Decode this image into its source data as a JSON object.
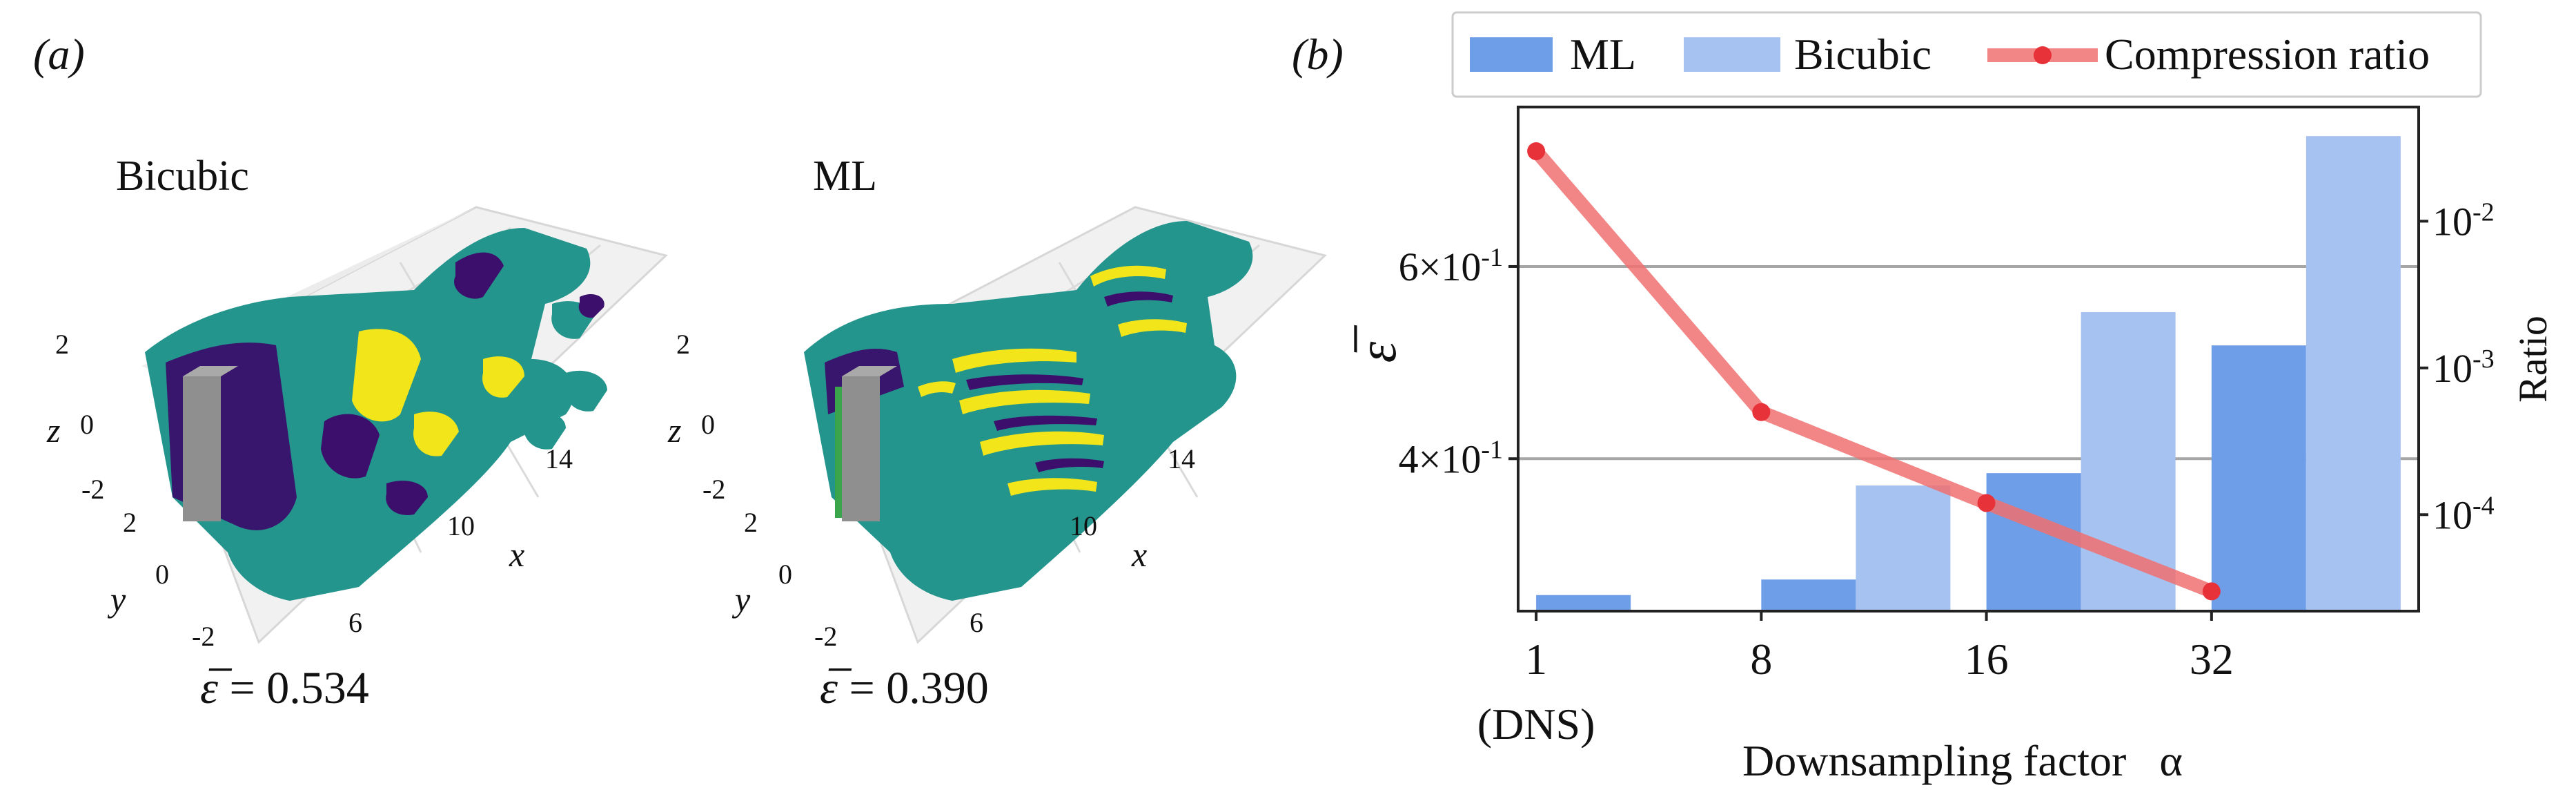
{
  "panel_a": {
    "label": "(a)",
    "plots": [
      {
        "title": "Bicubic",
        "epsilon_symbol": "ε̅",
        "epsilon_text": " = 0.534",
        "z_label": "z",
        "z_ticks": [
          "2",
          "0",
          "-2"
        ],
        "y_label": "y",
        "y_ticks": [
          "2",
          "0",
          "-2"
        ],
        "x_label": "x",
        "x_ticks": [
          "6",
          "10",
          "14"
        ]
      },
      {
        "title": "ML",
        "epsilon_symbol": "ε̅",
        "epsilon_text": " = 0.390",
        "z_label": "z",
        "z_ticks": [
          "2",
          "0",
          "-2"
        ],
        "y_label": "y",
        "y_ticks": [
          "2",
          "0",
          "-2"
        ],
        "x_label": "x",
        "x_ticks": [
          "6",
          "10",
          "14"
        ]
      }
    ],
    "colors": {
      "teal": "#23958c",
      "dark_teal": "#1b7a73",
      "purple": "#3b0f6b",
      "yellow": "#f2e51a",
      "gray_block": "#8f8f8f",
      "grid": "#d9d9d9"
    }
  },
  "panel_b": {
    "label": "(b)"
  },
  "chart_data": {
    "type": "bar",
    "categories": [
      "1",
      "8",
      "16",
      "32"
    ],
    "category_sublabels": [
      "(DNS)",
      "",
      "",
      ""
    ],
    "xlabel": "Downsampling factor   α",
    "ylabel": "ε̅",
    "y2label": "Ratio",
    "yscale": "log",
    "ylim": [
      0.29,
      0.84
    ],
    "yticks": [
      0.4,
      0.6
    ],
    "ytick_labels": [
      "4×10",
      "6×10"
    ],
    "ytick_exponent": "-1",
    "grid": "horizontal at major y ticks",
    "series": [
      {
        "name": "ML",
        "type": "bar",
        "color": "#6f9ee8",
        "values": [
          0.3,
          0.31,
          0.388,
          0.508
        ]
      },
      {
        "name": "Bicubic",
        "type": "bar",
        "color": "#a6c2f0",
        "values": [
          null,
          0.378,
          0.545,
          0.79
        ]
      },
      {
        "name": "Compression ratio",
        "type": "line",
        "axis": "right",
        "color": "#f07070",
        "marker_color": "#e8323a",
        "values": [
          0.03,
          0.0005,
          0.00012,
          3e-05
        ]
      }
    ],
    "y2scale": "log",
    "y2lim": [
      2.2e-05,
      0.06
    ],
    "y2ticks": [
      0.0001,
      0.001,
      0.01
    ],
    "y2tick_labels": [
      "10",
      "10",
      "10"
    ],
    "y2tick_exponents": [
      "-4",
      "-3",
      "-2"
    ],
    "legend": {
      "placement": "top",
      "entries": [
        "ML",
        "Bicubic",
        "Compression ratio"
      ]
    }
  }
}
